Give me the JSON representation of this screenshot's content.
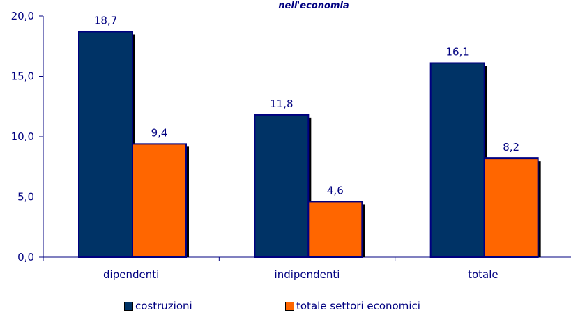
{
  "chart_data": {
    "type": "bar",
    "title": "nell'economia",
    "categories": [
      "dipendenti",
      "indipendenti",
      "totale"
    ],
    "series": [
      {
        "name": "costruzioni",
        "values": [
          18.7,
          11.8,
          16.1
        ],
        "color": "#003366"
      },
      {
        "name": "totale settori economici",
        "values": [
          9.4,
          4.6,
          8.2
        ],
        "color": "#FF6600"
      }
    ],
    "value_labels": [
      [
        "18,7",
        "11,8",
        "16,1"
      ],
      [
        "9,4",
        "4,6",
        "8,2"
      ]
    ],
    "yticks": [
      0,
      5,
      10,
      15,
      20
    ],
    "ytick_labels": [
      "0,0",
      "5,0",
      "10,0",
      "15,0",
      "20,0"
    ],
    "ylim": [
      0,
      20
    ],
    "xlabel": "",
    "ylabel": "",
    "grid": false,
    "legend_position": "bottom",
    "text_color": "#000080"
  }
}
